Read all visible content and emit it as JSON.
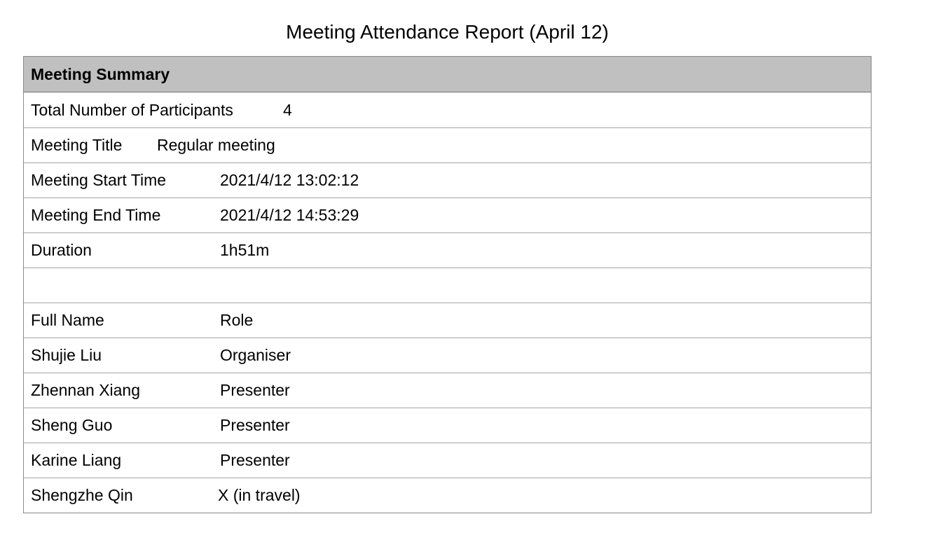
{
  "report": {
    "title": "Meeting Attendance Report (April 12)"
  },
  "summary": {
    "heading": "Meeting Summary",
    "participants_label": "Total Number of Participants",
    "participants_value": "4",
    "title_label": "Meeting Title",
    "title_value": "Regular meeting",
    "start_label": "Meeting Start Time",
    "start_value": "2021/4/12 13:02:12",
    "end_label": "Meeting End Time",
    "end_value": "2021/4/12 14:53:29",
    "duration_label": "Duration",
    "duration_value": "1h51m"
  },
  "attendees": {
    "headers": [
      "Full Name",
      "Role"
    ],
    "rows": [
      [
        "Shujie Liu",
        "Organiser"
      ],
      [
        "Zhennan Xiang",
        "Presenter"
      ],
      [
        "Sheng Guo",
        "Presenter"
      ],
      [
        "Karine Liang",
        "Presenter"
      ],
      [
        "Shengzhe Qin",
        "X (in travel)"
      ]
    ]
  }
}
